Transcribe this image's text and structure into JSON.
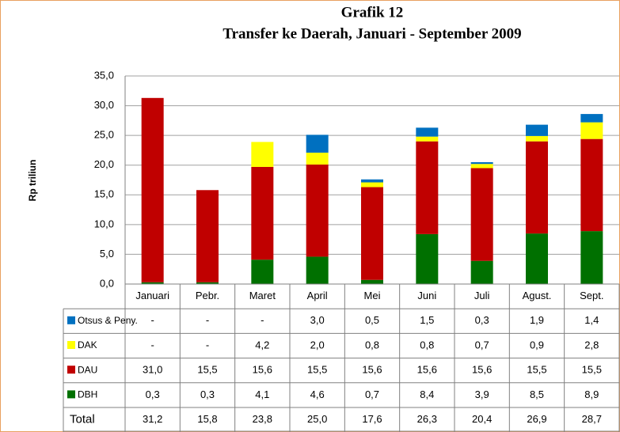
{
  "chart_data": {
    "type": "stacked-bar-table",
    "title": "Grafik 12",
    "subtitle": "Transfer ke Daerah, Januari -  September 2009",
    "y_label": "Rp triliun",
    "categories": [
      "Januari",
      "Pebr.",
      "Maret",
      "April",
      "Mei",
      "Juni",
      "Juli",
      "Agust.",
      "Sept."
    ],
    "ylim": [
      0,
      35
    ],
    "yticks": [
      {
        "value": 0,
        "label": "0,0"
      },
      {
        "value": 5,
        "label": "5,0"
      },
      {
        "value": 10,
        "label": "10,0"
      },
      {
        "value": 15,
        "label": "15,0"
      },
      {
        "value": 20,
        "label": "20,0"
      },
      {
        "value": 25,
        "label": "25,0"
      },
      {
        "value": 30,
        "label": "30,0"
      },
      {
        "value": 35,
        "label": "35,0"
      }
    ],
    "grid": true,
    "series": [
      {
        "name": "DBH",
        "color": "#007000",
        "values": [
          0.3,
          0.3,
          4.1,
          4.6,
          0.7,
          8.4,
          3.9,
          8.5,
          8.9
        ],
        "value_labels": [
          "0,3",
          "0,3",
          "4,1",
          "4,6",
          "0,7",
          "8,4",
          "3,9",
          "8,5",
          "8,9"
        ]
      },
      {
        "name": "DAU",
        "color": "#c00000",
        "values": [
          31.0,
          15.5,
          15.6,
          15.5,
          15.6,
          15.6,
          15.6,
          15.5,
          15.5
        ],
        "value_labels": [
          "31,0",
          "15,5",
          "15,6",
          "15,5",
          "15,6",
          "15,6",
          "15,6",
          "15,5",
          "15,5"
        ]
      },
      {
        "name": "DAK",
        "color": "#ffff00",
        "values": [
          null,
          null,
          4.2,
          2.0,
          0.8,
          0.8,
          0.7,
          0.9,
          2.8
        ],
        "value_labels": [
          "-",
          "-",
          "4,2",
          "2,0",
          "0,8",
          "0,8",
          "0,7",
          "0,9",
          "2,8"
        ]
      },
      {
        "name": "Otsus & Peny.",
        "color": "#0070c0",
        "values": [
          null,
          null,
          null,
          3.0,
          0.5,
          1.5,
          0.3,
          1.9,
          1.4
        ],
        "value_labels": [
          "-",
          "-",
          "-",
          "3,0",
          "0,5",
          "1,5",
          "0,3",
          "1,9",
          "1,4"
        ]
      }
    ],
    "total": {
      "name": "Total",
      "values": [
        31.2,
        15.8,
        23.8,
        25.0,
        17.6,
        26.3,
        20.4,
        26.9,
        28.7
      ],
      "value_labels": [
        "31,2",
        "15,8",
        "23,8",
        "25,0",
        "17,6",
        "26,3",
        "20,4",
        "26,9",
        "28,7"
      ]
    }
  }
}
